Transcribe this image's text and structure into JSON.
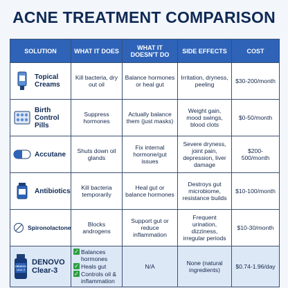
{
  "title": "ACNE TREATMENT COMPARISON",
  "headers": [
    "SOLUTION",
    "WHAT IT DOES",
    "WHAT IT DOESN'T DO",
    "SIDE EFFECTS",
    "COST"
  ],
  "rows": [
    {
      "icon": "cream-tube-icon",
      "name": "Topical Creams",
      "does": "Kill bacteria, dry out oil",
      "doesnt": "Balance hormones or heal gut",
      "side_effects": "Irritation, dryness, peeling",
      "cost": "$30-200/month"
    },
    {
      "icon": "pill-pack-icon",
      "name": "Birth Control Pills",
      "does": "Suppress hormones",
      "doesnt": "Actually balance them (just masks)",
      "side_effects": "Weight gain, mood swings, blood clots",
      "cost": "$0-50/month"
    },
    {
      "icon": "capsule-icon",
      "name": "Accutane",
      "does": "Shuts down oil glands",
      "doesnt": "Fix internal hormone/gut issues",
      "side_effects": "Severe dryness, joint pain, depression, liver damage",
      "cost": "$200-500/month"
    },
    {
      "icon": "medicine-bottle-icon",
      "name": "Antibiotics",
      "does": "Kill bacteria temporarily",
      "doesnt": "Heal gut or balance hormones",
      "side_effects": "Destroys gut microbiome, resistance builds",
      "cost": "$10-100/month"
    },
    {
      "icon": "tablet-icon",
      "name": "Spironolactone",
      "does": "Blocks androgens",
      "doesnt": "Support gut or reduce inflammation",
      "side_effects": "Frequent urination, dizziness, irregular periods",
      "cost": "$10-30/month"
    }
  ],
  "denovo": {
    "icon": "supplement-bottle-icon",
    "bottle_label_top": "DENOVO",
    "bottle_label_bottom": "clear-3",
    "name": "DENOVO Clear-3",
    "benefits": [
      "Balances hormones",
      "Heals gut",
      "Controls oil & inflammation"
    ],
    "doesnt": "N/A",
    "side_effects": "None (natural ingredients)",
    "cost": "$0.74-1.96/day"
  },
  "colors": {
    "header_bg": "#2e63b8",
    "highlight_row": "#dde8f7",
    "check_green": "#2f9e44",
    "title": "#0f2a55"
  }
}
